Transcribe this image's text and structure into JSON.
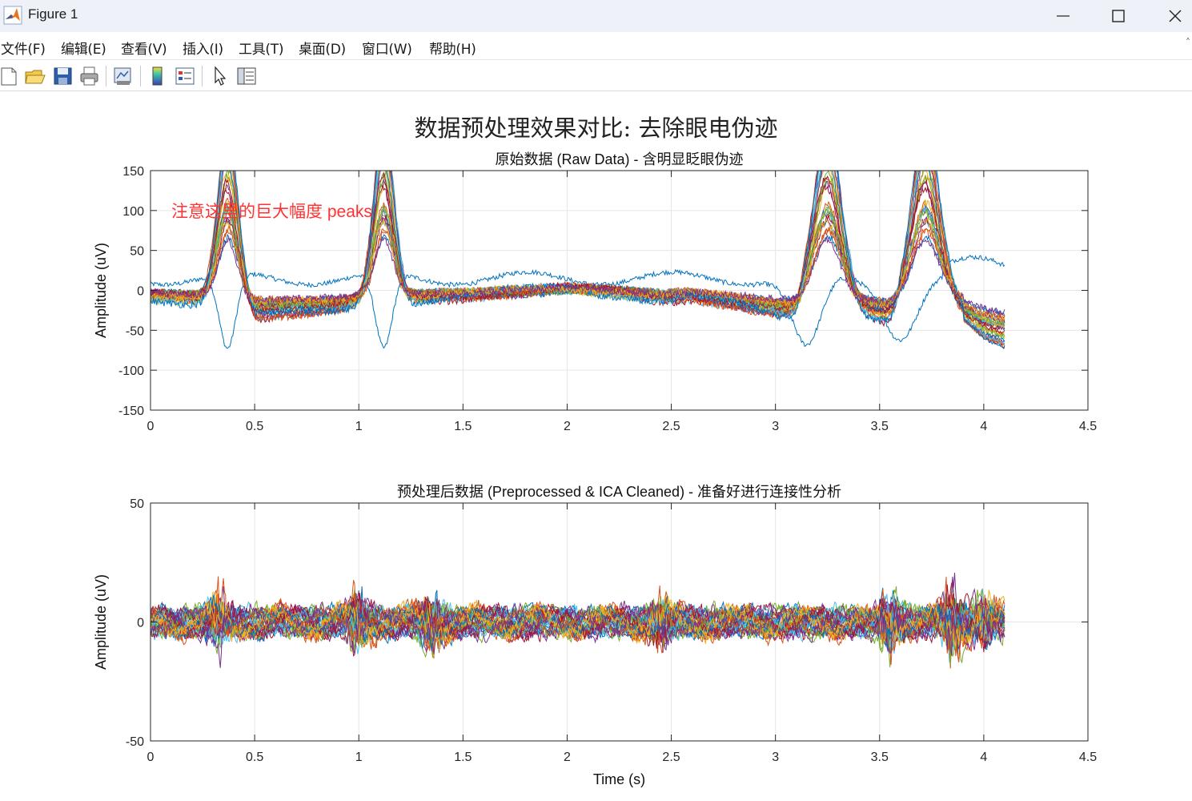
{
  "window": {
    "title": "Figure 1",
    "minimize_icon": "minimize-icon",
    "maximize_icon": "maximize-icon",
    "close_icon": "close-icon"
  },
  "menu": {
    "items": [
      "文件(F)",
      "编辑(E)",
      "查看(V)",
      "插入(I)",
      "工具(T)",
      "桌面(D)",
      "窗口(W)",
      "帮助(H)"
    ]
  },
  "toolbar": {
    "icons": [
      "new-figure-icon",
      "open-file-icon",
      "save-icon",
      "print-icon",
      "link-plot-icon",
      "colorbar-icon",
      "legend-icon",
      "edit-plot-icon",
      "property-inspector-icon"
    ]
  },
  "figure": {
    "sgtitle": "数据预处理效果对比: 去除眼电伪迹"
  },
  "chart_data": [
    {
      "type": "line",
      "title": "原始数据 (Raw Data) - 含明显眨眼伪迹",
      "xlabel": "",
      "ylabel": "Amplitude (uV)",
      "xlim": [
        0,
        4.5
      ],
      "ylim": [
        -150,
        150
      ],
      "xticks": [
        "0",
        "0.5",
        "1",
        "1.5",
        "2",
        "2.5",
        "3",
        "3.5",
        "4",
        "4.5"
      ],
      "yticks": [
        "150",
        "100",
        "50",
        "0",
        "-50",
        "-100",
        "-150"
      ],
      "grid": true,
      "annotation": {
        "text": "注意这里的巨大幅度 peaks",
        "x": 0.1,
        "y": 100,
        "color": "#ff3333"
      },
      "series_count": 32,
      "x_end": 4.1,
      "blink_times_s": [
        0.37,
        1.12,
        3.25,
        3.72
      ],
      "blink_peak_uv": 150,
      "envelope": {
        "x": [
          0,
          0.3,
          0.37,
          0.45,
          0.5,
          0.6,
          0.9,
          1.05,
          1.12,
          1.2,
          1.3,
          1.6,
          1.8,
          2.0,
          2.1,
          2.3,
          2.45,
          2.6,
          2.8,
          3.0,
          3.1,
          3.25,
          3.35,
          3.45,
          3.55,
          3.72,
          3.9,
          4.0,
          4.1
        ],
        "upper": [
          10,
          15,
          150,
          20,
          10,
          5,
          5,
          10,
          150,
          15,
          15,
          10,
          15,
          25,
          30,
          15,
          10,
          15,
          10,
          5,
          20,
          150,
          30,
          10,
          15,
          150,
          20,
          10,
          5
        ],
        "lower": [
          -20,
          -25,
          -10,
          -45,
          -60,
          -55,
          -50,
          -30,
          -10,
          -25,
          -20,
          -10,
          -5,
          0,
          -5,
          -10,
          -20,
          -15,
          -35,
          -60,
          -70,
          -20,
          -40,
          -55,
          -70,
          -10,
          -50,
          -80,
          -95
        ]
      }
    },
    {
      "type": "line",
      "title": "预处理后数据 (Preprocessed & ICA Cleaned) - 准备好进行连接性分析",
      "xlabel": "Time (s)",
      "ylabel": "Amplitude (uV)",
      "xlim": [
        0,
        4.5
      ],
      "ylim": [
        -50,
        50
      ],
      "xticks": [
        "0",
        "0.5",
        "1",
        "1.5",
        "2",
        "2.5",
        "3",
        "3.5",
        "4",
        "4.5"
      ],
      "yticks": [
        "50",
        "0",
        "-50"
      ],
      "grid": true,
      "series_count": 32,
      "x_end": 4.1,
      "noise_amplitude_uv": 8,
      "bursts": [
        {
          "x": 0.33,
          "amp": 25
        },
        {
          "x": 1.0,
          "amp": 26
        },
        {
          "x": 1.35,
          "amp": 25
        },
        {
          "x": 2.45,
          "amp": 22
        },
        {
          "x": 3.55,
          "amp": 28
        },
        {
          "x": 3.85,
          "amp": 33
        },
        {
          "x": 4.0,
          "amp": 22
        }
      ]
    }
  ],
  "colors": {
    "series": [
      "#0072bd",
      "#d95319",
      "#edb120",
      "#7e2f8e",
      "#77ac30",
      "#4dbeee",
      "#a2142f"
    ],
    "annotation": "#ff3333",
    "grid": "#e6e6e6",
    "axis": "#262626"
  }
}
